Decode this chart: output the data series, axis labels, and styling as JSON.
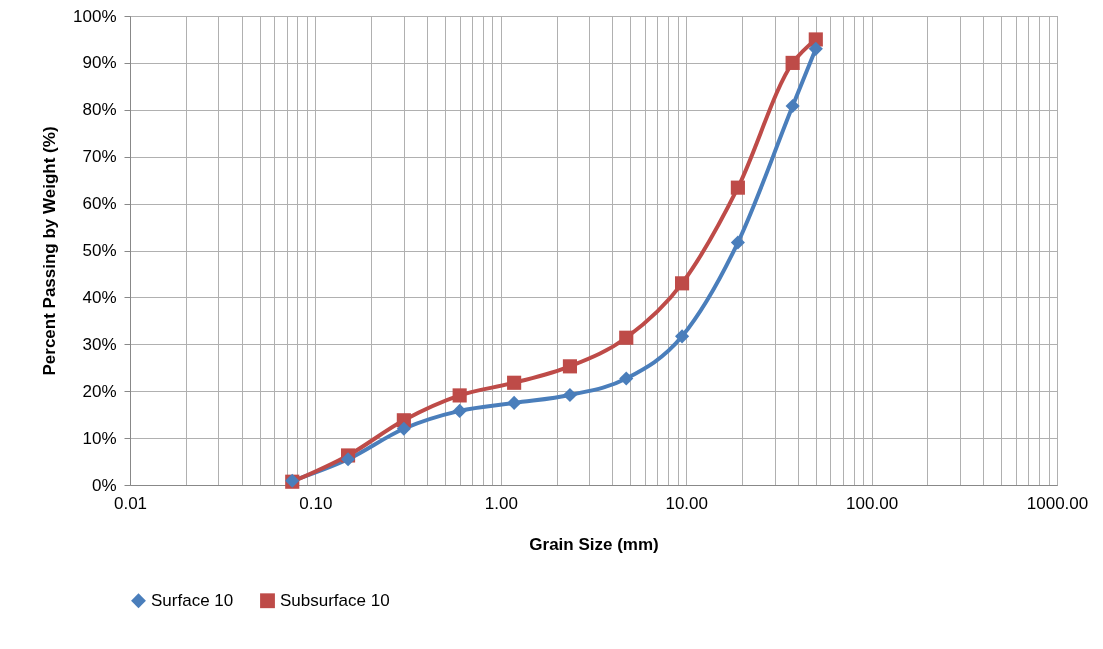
{
  "chart_data": {
    "type": "line",
    "xlabel": "Grain Size (mm)",
    "ylabel": "Percent Passing by Weight (%)",
    "log": "x",
    "grid": true,
    "legend": "bottom",
    "line_style": "solid",
    "xlim": [
      0.01,
      1000
    ],
    "xticks": [
      {
        "value": 0.01,
        "label": "0.01"
      },
      {
        "value": 0.02,
        "label": null
      },
      {
        "value": 0.03,
        "label": null
      },
      {
        "value": 0.04,
        "label": null
      },
      {
        "value": 0.05,
        "label": null
      },
      {
        "value": 0.06,
        "label": null
      },
      {
        "value": 0.07,
        "label": null
      },
      {
        "value": 0.08,
        "label": null
      },
      {
        "value": 0.09,
        "label": null
      },
      {
        "value": 0.1,
        "label": "0.10"
      },
      {
        "value": 0.2,
        "label": null
      },
      {
        "value": 0.3,
        "label": null
      },
      {
        "value": 0.4,
        "label": null
      },
      {
        "value": 0.5,
        "label": null
      },
      {
        "value": 0.6,
        "label": null
      },
      {
        "value": 0.7,
        "label": null
      },
      {
        "value": 0.8,
        "label": null
      },
      {
        "value": 0.9,
        "label": null
      },
      {
        "value": 1,
        "label": "1.00"
      },
      {
        "value": 2,
        "label": null
      },
      {
        "value": 3,
        "label": null
      },
      {
        "value": 4,
        "label": null
      },
      {
        "value": 5,
        "label": null
      },
      {
        "value": 6,
        "label": null
      },
      {
        "value": 7,
        "label": null
      },
      {
        "value": 8,
        "label": null
      },
      {
        "value": 9,
        "label": null
      },
      {
        "value": 10,
        "label": "10.00"
      },
      {
        "value": 20,
        "label": null
      },
      {
        "value": 30,
        "label": null
      },
      {
        "value": 40,
        "label": null
      },
      {
        "value": 50,
        "label": null
      },
      {
        "value": 60,
        "label": null
      },
      {
        "value": 70,
        "label": null
      },
      {
        "value": 80,
        "label": null
      },
      {
        "value": 90,
        "label": null
      },
      {
        "value": 100,
        "label": "100.00"
      },
      {
        "value": 200,
        "label": null
      },
      {
        "value": 300,
        "label": null
      },
      {
        "value": 400,
        "label": null
      },
      {
        "value": 500,
        "label": null
      },
      {
        "value": 600,
        "label": null
      },
      {
        "value": 700,
        "label": null
      },
      {
        "value": 800,
        "label": null
      },
      {
        "value": 900,
        "label": null
      },
      {
        "value": 1000,
        "label": "1000.00"
      }
    ],
    "ylim": [
      0,
      100
    ],
    "yticks": [
      {
        "value": 0,
        "label": "0%"
      },
      {
        "value": 10,
        "label": "10%"
      },
      {
        "value": 20,
        "label": "20%"
      },
      {
        "value": 30,
        "label": "30%"
      },
      {
        "value": 40,
        "label": "40%"
      },
      {
        "value": 50,
        "label": "50%"
      },
      {
        "value": 60,
        "label": "60%"
      },
      {
        "value": 70,
        "label": "70%"
      },
      {
        "value": 80,
        "label": "80%"
      },
      {
        "value": 90,
        "label": "90%"
      },
      {
        "value": 100,
        "label": "100%"
      }
    ],
    "x": [
      0.075,
      0.15,
      0.3,
      0.6,
      1.18,
      2.36,
      4.75,
      9.5,
      19,
      37.5,
      50
    ],
    "series": [
      {
        "name": "Surface 10",
        "color": "#4a7ebb",
        "marker": "diamond",
        "values": [
          0.9,
          5.5,
          12,
          15.8,
          17.5,
          19.2,
          22.7,
          31.7,
          51.7,
          80.8,
          93
        ]
      },
      {
        "name": "Subsurface 10",
        "color": "#be4b48",
        "marker": "square",
        "values": [
          0.7,
          6.3,
          13.8,
          19.1,
          21.8,
          25.3,
          31.4,
          43,
          63.4,
          90,
          95
        ]
      }
    ]
  }
}
